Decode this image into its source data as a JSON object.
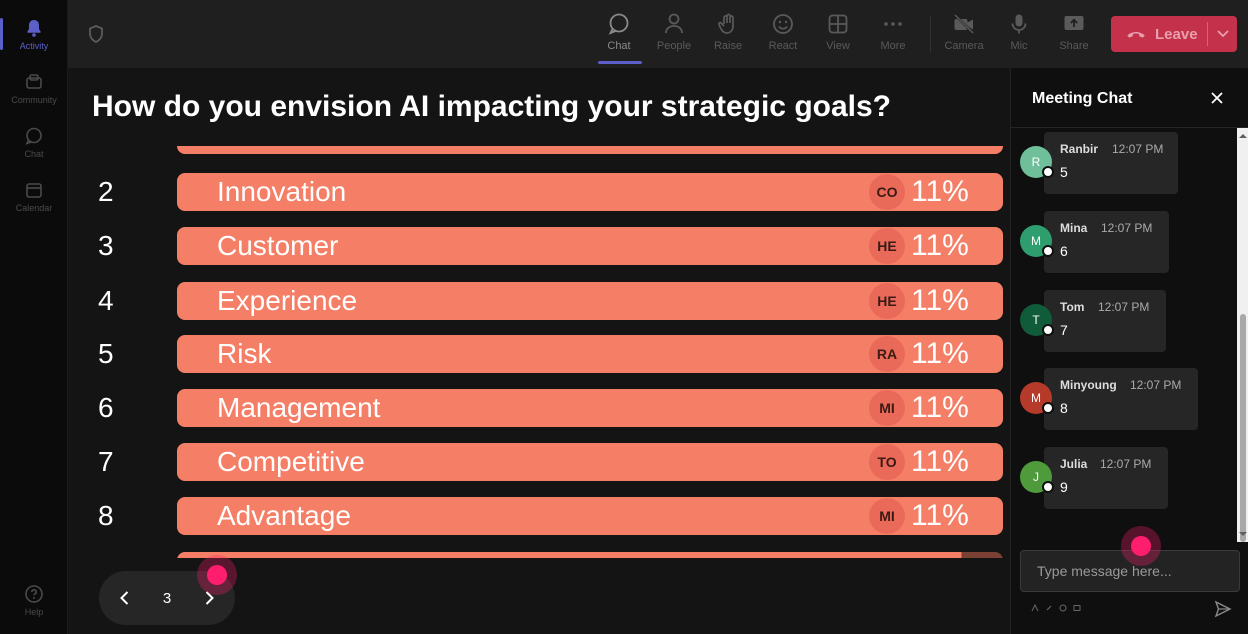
{
  "rail": {
    "items": [
      {
        "label": "Activity",
        "icon": "bell-icon"
      },
      {
        "label": "Community",
        "icon": "community-icon"
      },
      {
        "label": "Chat",
        "icon": "chat-icon"
      },
      {
        "label": "Calendar",
        "icon": "calendar-icon"
      },
      {
        "label": "Help",
        "icon": "help-icon"
      }
    ]
  },
  "topbar": {
    "buttons": [
      {
        "label": "Chat",
        "icon": "chat-icon"
      },
      {
        "label": "People",
        "icon": "people-icon"
      },
      {
        "label": "Raise",
        "icon": "raise-hand-icon"
      },
      {
        "label": "React",
        "icon": "smile-icon"
      },
      {
        "label": "View",
        "icon": "grid-icon"
      },
      {
        "label": "More",
        "icon": "more-icon"
      },
      {
        "label": "Camera",
        "icon": "camera-off-icon"
      },
      {
        "label": "Mic",
        "icon": "mic-icon"
      },
      {
        "label": "Share",
        "icon": "share-icon"
      }
    ],
    "leave_label": "Leave",
    "leave_color": "#c4314b",
    "accent": "#5b5fc7"
  },
  "poll": {
    "question": "How do you envision AI impacting your strategic goals?",
    "bar_color": "#f47e66",
    "rows": [
      {
        "num": "2",
        "label": "Innovation",
        "initials": "CO",
        "pct": "11%"
      },
      {
        "num": "3",
        "label": "Customer",
        "initials": "HE",
        "pct": "11%"
      },
      {
        "num": "4",
        "label": "Experience",
        "initials": "HE",
        "pct": "11%"
      },
      {
        "num": "5",
        "label": "Risk",
        "initials": "RA",
        "pct": "11%"
      },
      {
        "num": "6",
        "label": "Management",
        "initials": "MI",
        "pct": "11%"
      },
      {
        "num": "7",
        "label": "Competitive",
        "initials": "TO",
        "pct": "11%"
      },
      {
        "num": "8",
        "label": "Advantage",
        "initials": "MI",
        "pct": "11%"
      }
    ],
    "page": "3"
  },
  "chat": {
    "title": "Meeting Chat",
    "messages": [
      {
        "initial": "R",
        "name": "Ranbir",
        "time": "12:07 PM",
        "text": "5",
        "color": "#6fbf9a"
      },
      {
        "initial": "M",
        "name": "Mina",
        "time": "12:07 PM",
        "text": "6",
        "color": "#2e9e6e"
      },
      {
        "initial": "T",
        "name": "Tom",
        "time": "12:07 PM",
        "text": "7",
        "color": "#0f5b3a"
      },
      {
        "initial": "M",
        "name": "Minyoung",
        "time": "12:07 PM",
        "text": "8",
        "color": "#b53a2a"
      },
      {
        "initial": "J",
        "name": "Julia",
        "time": "12:07 PM",
        "text": "9",
        "color": "#4f9a3a"
      }
    ],
    "input_placeholder": "Type message here..."
  }
}
